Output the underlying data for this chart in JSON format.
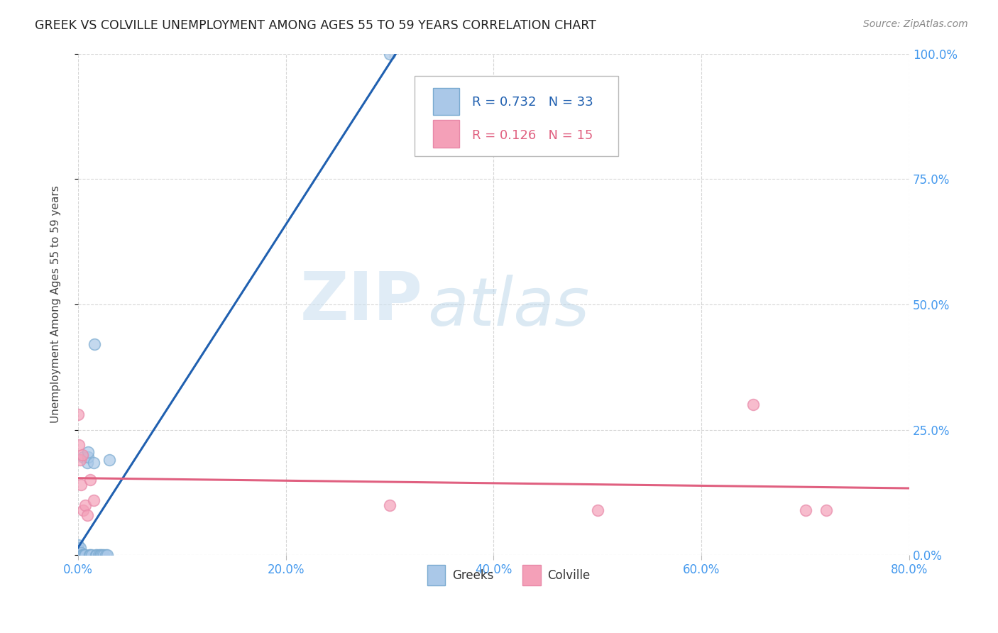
{
  "title": "GREEK VS COLVILLE UNEMPLOYMENT AMONG AGES 55 TO 59 YEARS CORRELATION CHART",
  "source": "Source: ZipAtlas.com",
  "ylabel": "Unemployment Among Ages 55 to 59 years",
  "xlim": [
    0,
    0.8
  ],
  "ylim": [
    0,
    1.0
  ],
  "xticks": [
    0.0,
    0.2,
    0.4,
    0.6,
    0.8
  ],
  "yticks": [
    0.0,
    0.25,
    0.5,
    0.75,
    1.0
  ],
  "watermark_zip": "ZIP",
  "watermark_atlas": "atlas",
  "greeks_x": [
    0.0,
    0.0,
    0.0,
    0.001,
    0.001,
    0.002,
    0.002,
    0.003,
    0.003,
    0.004,
    0.005,
    0.005,
    0.006,
    0.007,
    0.009,
    0.01,
    0.01,
    0.011,
    0.012,
    0.013,
    0.015,
    0.016,
    0.017,
    0.018,
    0.02,
    0.021,
    0.022,
    0.023,
    0.025,
    0.027,
    0.028,
    0.03,
    0.3
  ],
  "greeks_y": [
    0.0,
    0.01,
    0.02,
    0.0,
    0.01,
    0.0,
    0.015,
    0.0,
    0.005,
    0.0,
    0.0,
    0.195,
    0.0,
    0.0,
    0.185,
    0.195,
    0.205,
    0.0,
    0.0,
    0.0,
    0.185,
    0.42,
    0.0,
    0.0,
    0.0,
    0.0,
    0.0,
    0.0,
    0.0,
    0.0,
    0.0,
    0.19,
    1.0
  ],
  "colville_x": [
    0.0,
    0.001,
    0.002,
    0.003,
    0.004,
    0.005,
    0.007,
    0.009,
    0.012,
    0.015,
    0.3,
    0.5,
    0.65,
    0.7,
    0.72
  ],
  "colville_y": [
    0.28,
    0.22,
    0.19,
    0.14,
    0.2,
    0.09,
    0.1,
    0.08,
    0.15,
    0.11,
    0.1,
    0.09,
    0.3,
    0.09,
    0.09
  ],
  "greeks_color": "#aac8e8",
  "colville_color": "#f4a0b8",
  "greeks_line_color": "#2060b0",
  "colville_line_color": "#e06080",
  "greeks_edge_color": "#7aaad0",
  "colville_edge_color": "#e888a8",
  "grid_color": "#cccccc",
  "bg_color": "#ffffff",
  "title_color": "#222222",
  "tick_color": "#4499ee",
  "ylabel_color": "#444444",
  "legend_text_color_blue": "#2060b0",
  "legend_text_color_pink": "#e06080",
  "source_color": "#888888"
}
